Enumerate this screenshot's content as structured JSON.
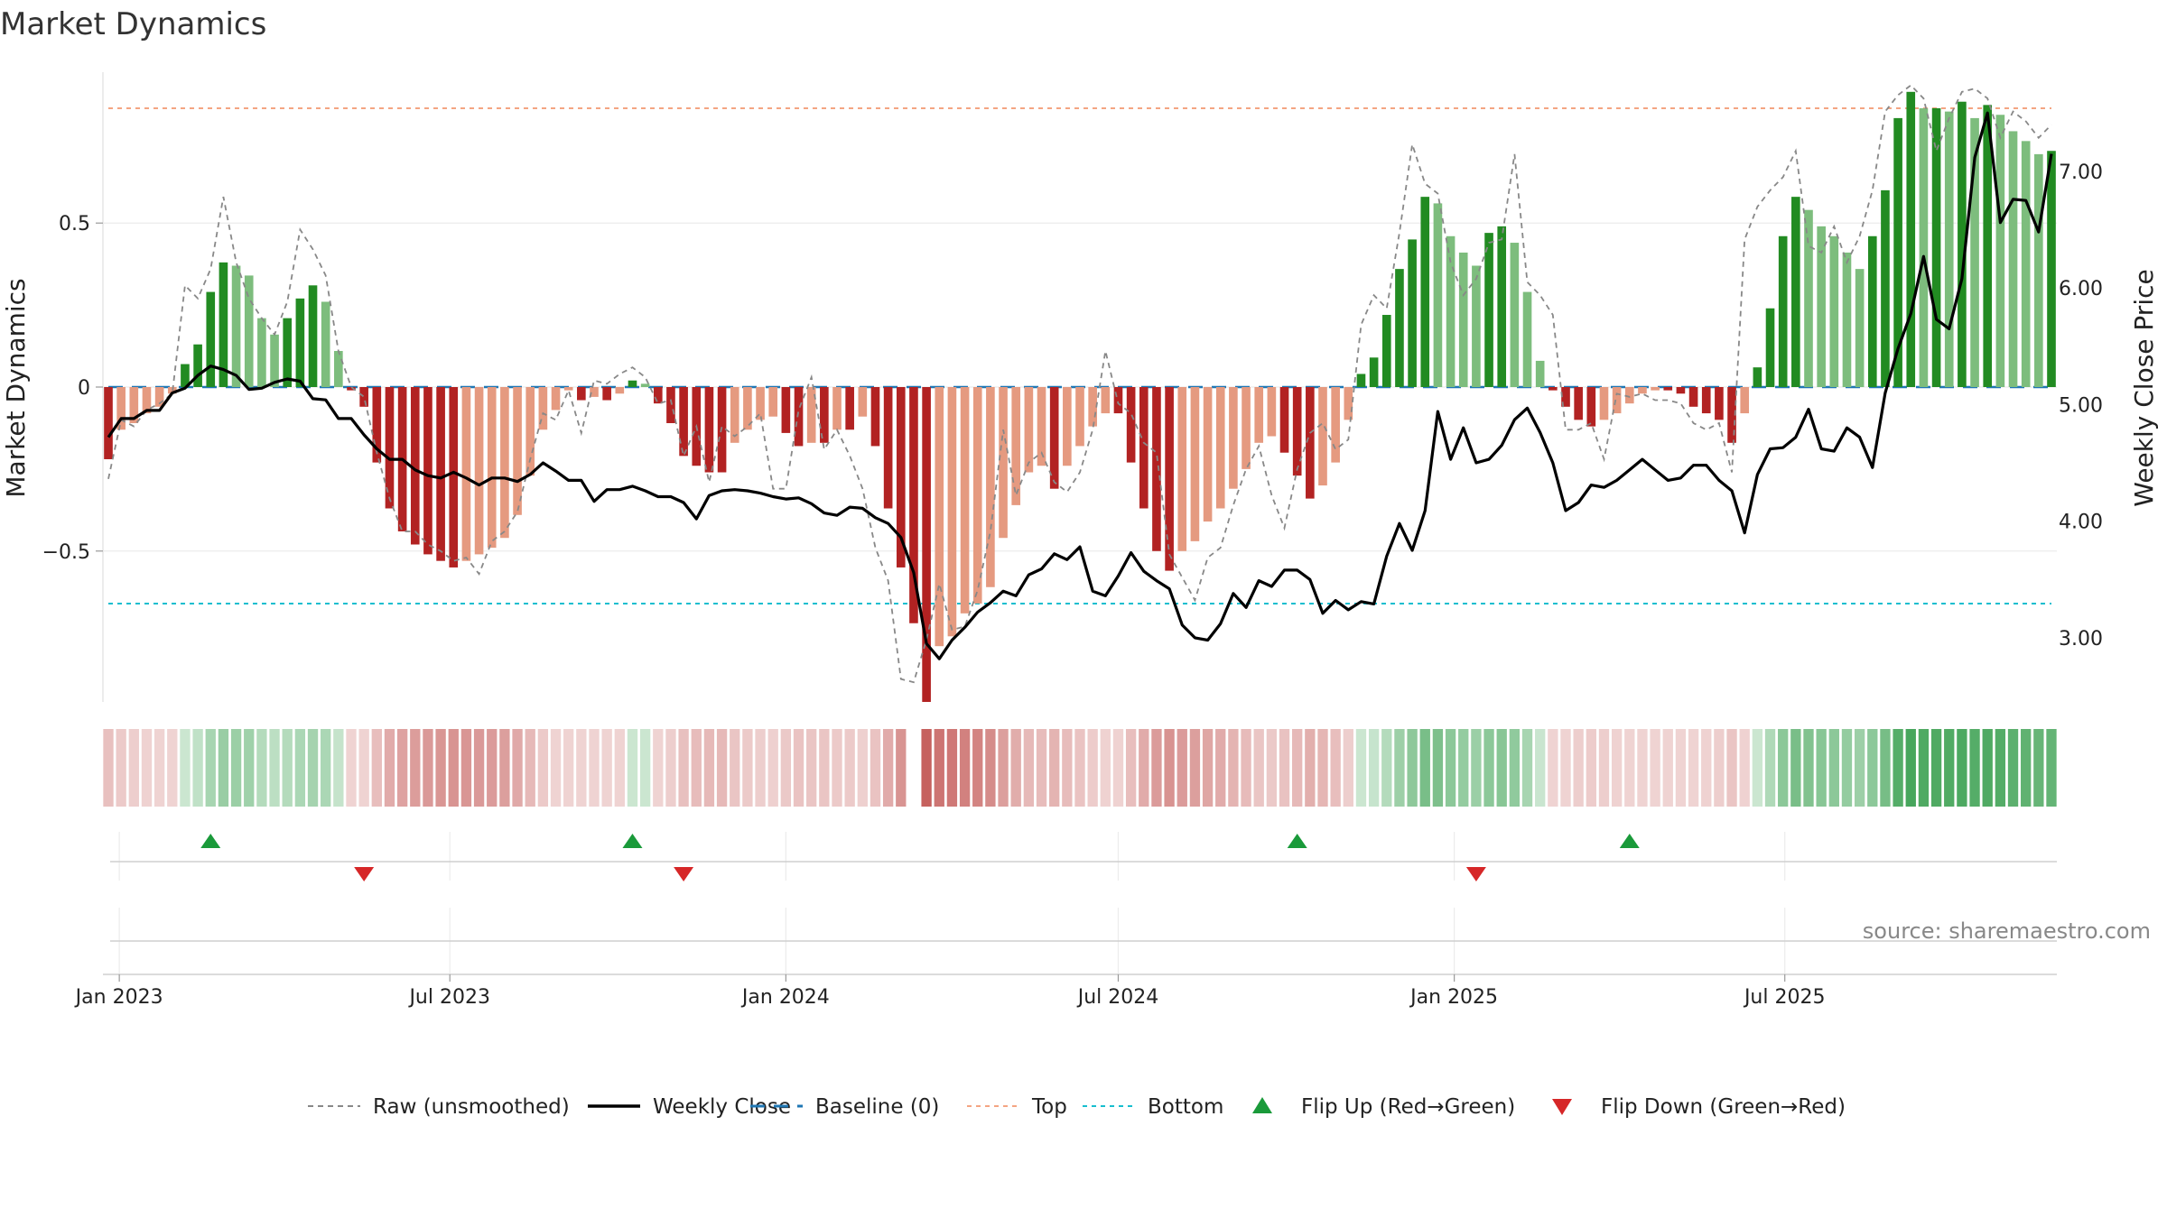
{
  "chart_data": {
    "type": "bar",
    "title": "Market Dynamics",
    "ylabel_left": "Market Dynamics",
    "ylabel_right": "Weekly Close Price",
    "ylim_left": [
      -0.96,
      0.96
    ],
    "ylim_right": [
      2.45,
      7.85
    ],
    "yticks_left": [
      {
        "value": 0.5,
        "label": "0.5"
      },
      {
        "value": 0,
        "label": "0"
      },
      {
        "value": -0.5,
        "label": "−0.5"
      }
    ],
    "yticks_right": [
      {
        "value": 7.0,
        "label": "7.00"
      },
      {
        "value": 6.0,
        "label": "6.00"
      },
      {
        "value": 5.0,
        "label": "5.00"
      },
      {
        "value": 4.0,
        "label": "4.00"
      },
      {
        "value": 3.0,
        "label": "3.00"
      }
    ],
    "xticks": [
      {
        "date": "2023-01-01",
        "label": "Jan 2023"
      },
      {
        "date": "2023-07-01",
        "label": "Jul 2023"
      },
      {
        "date": "2024-01-01",
        "label": "Jan 2024"
      },
      {
        "date": "2024-07-01",
        "label": "Jul 2024"
      },
      {
        "date": "2025-01-01",
        "label": "Jan 2025"
      },
      {
        "date": "2025-07-01",
        "label": "Jul 2025"
      }
    ],
    "first_week": "2022-12-26",
    "top_level": 0.85,
    "bottom_level": -0.66,
    "baseline": 0,
    "dynamics": [
      -0.22,
      -0.13,
      -0.11,
      -0.08,
      -0.06,
      -0.02,
      0.07,
      0.13,
      0.29,
      0.38,
      0.37,
      0.34,
      0.21,
      0.16,
      0.21,
      0.27,
      0.31,
      0.26,
      0.11,
      -0.01,
      -0.06,
      -0.23,
      -0.37,
      -0.44,
      -0.48,
      -0.51,
      -0.53,
      -0.55,
      -0.53,
      -0.51,
      -0.49,
      -0.46,
      -0.39,
      -0.27,
      -0.13,
      -0.07,
      -0.01,
      -0.04,
      -0.03,
      -0.04,
      -0.02,
      0.02,
      0.01,
      -0.05,
      -0.11,
      -0.21,
      -0.24,
      -0.26,
      -0.26,
      -0.17,
      -0.13,
      -0.1,
      -0.09,
      -0.14,
      -0.18,
      -0.17,
      -0.17,
      -0.13,
      -0.13,
      -0.09,
      -0.18,
      -0.37,
      -0.55,
      -0.72,
      -0.96,
      -0.79,
      -0.76,
      -0.69,
      -0.66,
      -0.61,
      -0.46,
      -0.36,
      -0.26,
      -0.24,
      -0.31,
      -0.24,
      -0.18,
      -0.12,
      -0.08,
      -0.08,
      -0.23,
      -0.37,
      -0.5,
      -0.56,
      -0.5,
      -0.47,
      -0.41,
      -0.37,
      -0.31,
      -0.25,
      -0.17,
      -0.15,
      -0.2,
      -0.27,
      -0.34,
      -0.3,
      -0.23,
      -0.1,
      0.04,
      0.09,
      0.22,
      0.36,
      0.45,
      0.58,
      0.56,
      0.46,
      0.41,
      0.37,
      0.47,
      0.49,
      0.44,
      0.29,
      0.08,
      -0.01,
      -0.06,
      -0.1,
      -0.12,
      -0.1,
      -0.08,
      -0.05,
      -0.02,
      -0.01,
      -0.01,
      -0.02,
      -0.06,
      -0.08,
      -0.1,
      -0.17,
      -0.08,
      0.06,
      0.24,
      0.46,
      0.58,
      0.54,
      0.49,
      0.46,
      0.41,
      0.36,
      0.46,
      0.6,
      0.82,
      0.9,
      0.85,
      0.85,
      0.84,
      0.87,
      0.82,
      0.86,
      0.83,
      0.78,
      0.75,
      0.71,
      0.72
    ],
    "raw": [
      -0.28,
      -0.1,
      -0.12,
      -0.07,
      -0.05,
      -0.02,
      0.31,
      0.27,
      0.36,
      0.58,
      0.38,
      0.27,
      0.21,
      0.16,
      0.26,
      0.48,
      0.42,
      0.34,
      0.11,
      0.0,
      -0.03,
      -0.2,
      -0.34,
      -0.44,
      -0.44,
      -0.48,
      -0.5,
      -0.53,
      -0.52,
      -0.57,
      -0.47,
      -0.44,
      -0.38,
      -0.22,
      -0.08,
      -0.1,
      -0.01,
      -0.14,
      0.02,
      0.01,
      0.04,
      0.06,
      0.03,
      -0.05,
      -0.04,
      -0.21,
      -0.12,
      -0.29,
      -0.12,
      -0.15,
      -0.12,
      -0.08,
      -0.31,
      -0.31,
      -0.07,
      0.03,
      -0.19,
      -0.13,
      -0.21,
      -0.31,
      -0.49,
      -0.59,
      -0.89,
      -0.9,
      -0.77,
      -0.6,
      -0.74,
      -0.73,
      -0.62,
      -0.44,
      -0.13,
      -0.33,
      -0.23,
      -0.2,
      -0.29,
      -0.32,
      -0.26,
      -0.13,
      0.11,
      -0.05,
      -0.08,
      -0.17,
      -0.2,
      -0.51,
      -0.58,
      -0.65,
      -0.52,
      -0.49,
      -0.36,
      -0.25,
      -0.18,
      -0.33,
      -0.43,
      -0.25,
      -0.14,
      -0.11,
      -0.19,
      -0.16,
      0.19,
      0.28,
      0.24,
      0.47,
      0.74,
      0.62,
      0.59,
      0.38,
      0.28,
      0.33,
      0.44,
      0.45,
      0.71,
      0.32,
      0.28,
      0.22,
      -0.13,
      -0.13,
      -0.11,
      -0.22,
      -0.02,
      -0.03,
      -0.02,
      -0.04,
      -0.04,
      -0.05,
      -0.11,
      -0.13,
      -0.11,
      -0.26,
      0.45,
      0.55,
      0.6,
      0.64,
      0.72,
      0.43,
      0.41,
      0.49,
      0.38,
      0.46,
      0.6,
      0.84,
      0.89,
      0.92,
      0.88,
      0.72,
      0.82,
      0.9,
      0.91,
      0.88,
      0.76,
      0.84,
      0.81,
      0.76,
      0.8
    ],
    "weekly_close": [
      4.72,
      4.88,
      4.88,
      4.95,
      4.95,
      5.1,
      5.14,
      5.25,
      5.33,
      5.3,
      5.25,
      5.13,
      5.14,
      5.19,
      5.22,
      5.2,
      5.05,
      5.04,
      4.88,
      4.88,
      4.74,
      4.62,
      4.53,
      4.53,
      4.44,
      4.39,
      4.37,
      4.42,
      4.37,
      4.31,
      4.37,
      4.37,
      4.34,
      4.4,
      4.5,
      4.43,
      4.35,
      4.35,
      4.17,
      4.27,
      4.27,
      4.3,
      4.26,
      4.21,
      4.21,
      4.16,
      4.02,
      4.22,
      4.26,
      4.27,
      4.26,
      4.24,
      4.21,
      4.19,
      4.2,
      4.15,
      4.07,
      4.05,
      4.12,
      4.11,
      4.03,
      3.98,
      3.86,
      3.56,
      2.95,
      2.82,
      2.98,
      3.09,
      3.22,
      3.3,
      3.4,
      3.36,
      3.54,
      3.59,
      3.72,
      3.67,
      3.78,
      3.4,
      3.36,
      3.53,
      3.73,
      3.57,
      3.49,
      3.42,
      3.11,
      3.0,
      2.98,
      3.12,
      3.38,
      3.26,
      3.49,
      3.44,
      3.58,
      3.58,
      3.5,
      3.21,
      3.32,
      3.24,
      3.31,
      3.29,
      3.7,
      3.98,
      3.75,
      4.09,
      4.94,
      4.53,
      4.8,
      4.5,
      4.53,
      4.65,
      4.87,
      4.97,
      4.76,
      4.5,
      4.09,
      4.16,
      4.31,
      4.29,
      4.35,
      4.44,
      4.53,
      4.44,
      4.35,
      4.37,
      4.48,
      4.48,
      4.35,
      4.26,
      3.9,
      4.4,
      4.62,
      4.63,
      4.72,
      4.96,
      4.62,
      4.6,
      4.8,
      4.72,
      4.46,
      5.1,
      5.48,
      5.78,
      6.27,
      5.73,
      5.65,
      6.08,
      7.12,
      7.5,
      6.56,
      6.76,
      6.75,
      6.48,
      7.15
    ],
    "flip_up_dates": [
      "2023-02-20",
      "2023-10-09",
      "2024-10-07",
      "2025-04-07"
    ],
    "flip_down_dates": [
      "2023-05-15",
      "2023-11-06",
      "2025-01-13"
    ],
    "legend": [
      {
        "type": "dashed-gray",
        "label": "Raw (unsmoothed)"
      },
      {
        "type": "solid-black",
        "label": "Weekly Close"
      },
      {
        "type": "dashed-blue",
        "label": "Baseline (0)"
      },
      {
        "type": "dotted-orange",
        "label": "Top"
      },
      {
        "type": "dotted-cyan",
        "label": "Bottom"
      },
      {
        "type": "triangle-up",
        "label": "Flip Up (Red→Green)"
      },
      {
        "type": "triangle-down",
        "label": "Flip Down (Green→Red)"
      }
    ],
    "source": "source: sharemaestro.com",
    "colors": {
      "green_dark": "#228b22",
      "green_light": "#7dbd7d",
      "red_dark": "#b22222",
      "red_light": "#e59a80",
      "raw": "#888888",
      "close": "#000000",
      "baseline": "#1f77b4",
      "top": "#f4a582",
      "bottom": "#17becf",
      "flip_up": "#1a9a3a",
      "flip_down": "#d62728",
      "band_green": "#2e9a45",
      "band_red": "#c0504d"
    }
  }
}
